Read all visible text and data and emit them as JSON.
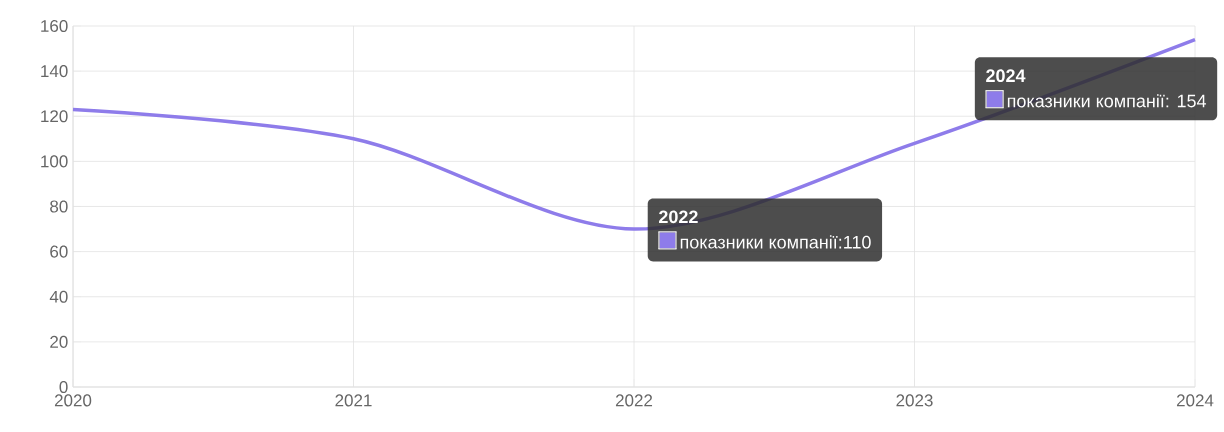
{
  "chart_data": {
    "type": "line",
    "x": [
      2020,
      2021,
      2022,
      2023,
      2024
    ],
    "series": [
      {
        "color": "#8e7cea",
        "values": [
          123,
          110,
          70,
          108,
          154
        ]
      }
    ],
    "xlim": [
      2020,
      2024
    ],
    "xticks": [
      2020,
      2021,
      2022,
      2023,
      2024
    ],
    "ylim": [
      0,
      160
    ],
    "yticks": [
      0,
      20,
      40,
      60,
      80,
      100,
      120,
      140,
      160
    ],
    "grid": true,
    "marker": "none",
    "line_style": "solid",
    "annotations": [
      "2022",
      "показники компанії:110",
      "2024",
      "показники компанії: 154"
    ]
  }
}
